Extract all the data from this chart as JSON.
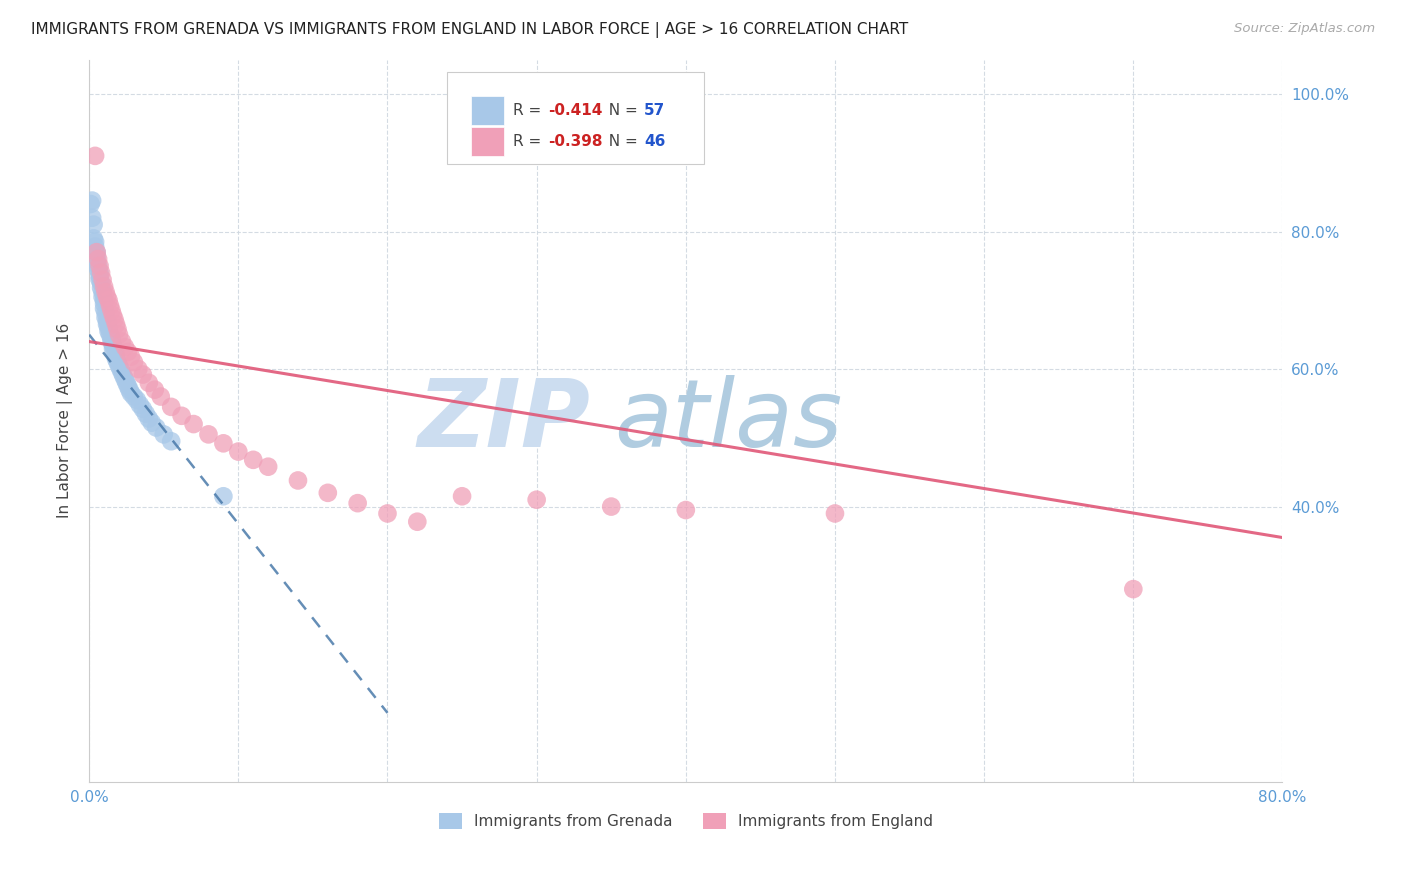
{
  "title": "IMMIGRANTS FROM GRENADA VS IMMIGRANTS FROM ENGLAND IN LABOR FORCE | AGE > 16 CORRELATION CHART",
  "source": "Source: ZipAtlas.com",
  "ylabel": "In Labor Force | Age > 16",
  "xlim": [
    0.0,
    0.8
  ],
  "ylim": [
    0.0,
    1.05
  ],
  "y_ticks_right": [
    0.4,
    0.6,
    0.8,
    1.0
  ],
  "y_tick_labels_right": [
    "40.0%",
    "60.0%",
    "80.0%",
    "100.0%"
  ],
  "grenada_color": "#a8c8e8",
  "england_color": "#f0a0b8",
  "grenada_line_color": "#4a7aaa",
  "england_line_color": "#e05878",
  "R_grenada": -0.414,
  "N_grenada": 57,
  "R_england": -0.398,
  "N_england": 46,
  "grenada_x": [
    0.001,
    0.002,
    0.002,
    0.003,
    0.003,
    0.004,
    0.004,
    0.005,
    0.005,
    0.005,
    0.006,
    0.006,
    0.007,
    0.007,
    0.007,
    0.008,
    0.008,
    0.009,
    0.009,
    0.01,
    0.01,
    0.01,
    0.011,
    0.011,
    0.012,
    0.012,
    0.013,
    0.013,
    0.014,
    0.015,
    0.015,
    0.016,
    0.016,
    0.017,
    0.018,
    0.018,
    0.019,
    0.02,
    0.021,
    0.022,
    0.023,
    0.024,
    0.025,
    0.026,
    0.027,
    0.028,
    0.03,
    0.032,
    0.034,
    0.036,
    0.038,
    0.04,
    0.042,
    0.045,
    0.05,
    0.055,
    0.09
  ],
  "grenada_y": [
    0.84,
    0.845,
    0.82,
    0.81,
    0.79,
    0.785,
    0.778,
    0.77,
    0.765,
    0.758,
    0.75,
    0.745,
    0.74,
    0.735,
    0.73,
    0.725,
    0.718,
    0.712,
    0.705,
    0.7,
    0.695,
    0.688,
    0.682,
    0.675,
    0.67,
    0.665,
    0.66,
    0.655,
    0.65,
    0.645,
    0.64,
    0.635,
    0.63,
    0.625,
    0.62,
    0.615,
    0.61,
    0.605,
    0.6,
    0.595,
    0.59,
    0.585,
    0.58,
    0.575,
    0.57,
    0.565,
    0.56,
    0.555,
    0.548,
    0.542,
    0.535,
    0.528,
    0.522,
    0.515,
    0.505,
    0.495,
    0.415
  ],
  "england_x": [
    0.004,
    0.005,
    0.006,
    0.007,
    0.008,
    0.009,
    0.01,
    0.011,
    0.012,
    0.013,
    0.014,
    0.015,
    0.016,
    0.017,
    0.018,
    0.019,
    0.02,
    0.022,
    0.024,
    0.026,
    0.028,
    0.03,
    0.033,
    0.036,
    0.04,
    0.044,
    0.048,
    0.055,
    0.062,
    0.07,
    0.08,
    0.09,
    0.1,
    0.11,
    0.12,
    0.14,
    0.16,
    0.18,
    0.2,
    0.22,
    0.25,
    0.3,
    0.35,
    0.4,
    0.5,
    0.7
  ],
  "england_y": [
    0.91,
    0.77,
    0.76,
    0.75,
    0.74,
    0.73,
    0.72,
    0.712,
    0.705,
    0.7,
    0.692,
    0.685,
    0.678,
    0.672,
    0.665,
    0.658,
    0.65,
    0.64,
    0.632,
    0.625,
    0.618,
    0.61,
    0.6,
    0.592,
    0.58,
    0.57,
    0.56,
    0.545,
    0.532,
    0.52,
    0.505,
    0.492,
    0.48,
    0.468,
    0.458,
    0.438,
    0.42,
    0.405,
    0.39,
    0.378,
    0.415,
    0.41,
    0.4,
    0.395,
    0.39,
    0.28
  ],
  "grenada_line_x": [
    0.0,
    0.2
  ],
  "grenada_line_y": [
    0.65,
    0.1
  ],
  "england_line_x": [
    0.0,
    0.8
  ],
  "england_line_y": [
    0.64,
    0.355
  ]
}
